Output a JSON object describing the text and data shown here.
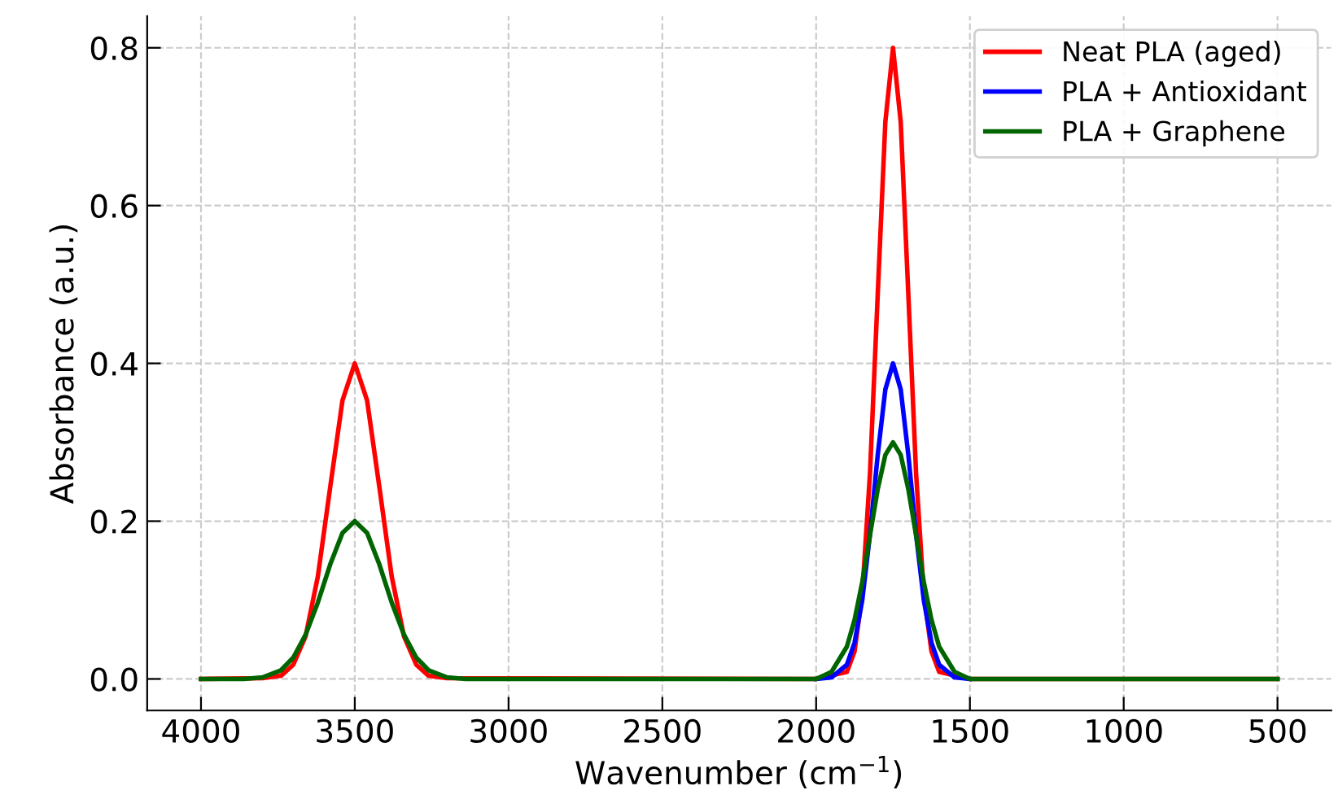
{
  "chart_data": {
    "type": "line",
    "xlabel": "Wavenumber (cm$^{−1}$)",
    "ylabel": "Absorbance (a.u.)",
    "xlim": [
      4175,
      325
    ],
    "xticks": [
      4000,
      3500,
      3000,
      2500,
      2000,
      1500,
      1000,
      500
    ],
    "ylim": [
      -0.04,
      0.84
    ],
    "yticks": [
      {
        "value": 0,
        "label": "0.0"
      },
      0.2,
      0.4,
      0.6,
      0.8
    ],
    "grid": true,
    "legend": "top right",
    "line_style": "solid",
    "marker": "none",
    "series": [
      {
        "name": "Neat PLA (aged)",
        "color": "#ff0000",
        "x": [
          4000,
          3800,
          3740,
          3700,
          3660,
          3620,
          3580,
          3540,
          3500,
          3460,
          3420,
          3380,
          3340,
          3300,
          3260,
          3200,
          2000,
          1900,
          1875,
          1850,
          1825,
          1800,
          1775,
          1750,
          1725,
          1700,
          1675,
          1650,
          1625,
          1600,
          1500,
          500
        ],
        "values": [
          0,
          0.001,
          0.004,
          0.018,
          0.054,
          0.13,
          0.243,
          0.353,
          0.4,
          0.353,
          0.243,
          0.13,
          0.054,
          0.018,
          0.004,
          0.001,
          0,
          0.009,
          0.035,
          0.108,
          0.26,
          0.485,
          0.706,
          0.8,
          0.706,
          0.485,
          0.26,
          0.108,
          0.035,
          0.009,
          0,
          0
        ]
      },
      {
        "name": "PLA + Antioxidant",
        "color": "#0000ff",
        "x": [
          2000,
          1950,
          1900,
          1875,
          1850,
          1825,
          1800,
          1775,
          1750,
          1725,
          1700,
          1675,
          1650,
          1625,
          1600,
          1550,
          1500
        ],
        "values": [
          0,
          0.002,
          0.018,
          0.046,
          0.1,
          0.183,
          0.283,
          0.367,
          0.4,
          0.367,
          0.283,
          0.183,
          0.1,
          0.046,
          0.018,
          0.002,
          0
        ]
      },
      {
        "name": "PLA + Graphene",
        "color": "#006400",
        "x": [
          4000,
          3860,
          3800,
          3740,
          3700,
          3660,
          3620,
          3580,
          3540,
          3500,
          3460,
          3420,
          3380,
          3340,
          3300,
          3260,
          3200,
          3140,
          2000,
          1950,
          1900,
          1875,
          1850,
          1825,
          1800,
          1775,
          1750,
          1725,
          1700,
          1675,
          1650,
          1625,
          1600,
          1550,
          1500,
          500
        ],
        "values": [
          0,
          0,
          0.002,
          0.011,
          0.027,
          0.056,
          0.097,
          0.145,
          0.185,
          0.2,
          0.185,
          0.145,
          0.097,
          0.056,
          0.027,
          0.011,
          0.002,
          0,
          0,
          0.009,
          0.041,
          0.075,
          0.123,
          0.182,
          0.24,
          0.284,
          0.3,
          0.284,
          0.24,
          0.182,
          0.123,
          0.075,
          0.041,
          0.009,
          0,
          0
        ]
      }
    ]
  }
}
